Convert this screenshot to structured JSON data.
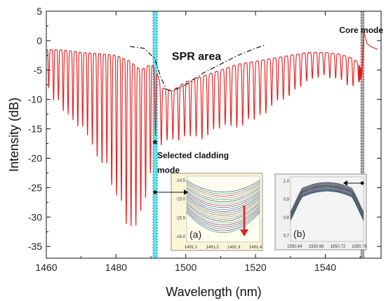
{
  "chart_data": {
    "type": "line",
    "title": "",
    "xlabel": "Wavelength (nm)",
    "ylabel": "Intensity (dB)",
    "xlim": [
      1460,
      1556
    ],
    "ylim": [
      -37,
      5
    ],
    "x_ticks": [
      1460,
      1480,
      1500,
      1520,
      1540
    ],
    "y_ticks": [
      5,
      0,
      -5,
      -10,
      -15,
      -20,
      -25,
      -30,
      -35
    ],
    "grid": false,
    "series": [
      {
        "name": "",
        "color": "#e8191a",
        "x": [
          1460,
          1465,
          1470,
          1475,
          1480,
          1484,
          1487,
          1490,
          1491.5,
          1493,
          1496,
          1500,
          1505,
          1510,
          1515,
          1520,
          1525,
          1530,
          1535,
          1540,
          1544,
          1547,
          1549,
          1550.5,
          1551,
          1552,
          1553,
          1555
        ],
        "upper_envelope": [
          -1.5,
          -1.6,
          -2.0,
          -2.2,
          -2.5,
          -3.5,
          -5,
          -4,
          -5,
          -8,
          -8.5,
          -7,
          -6,
          -5,
          -4,
          -3.5,
          -3,
          -2.5,
          -2,
          -2,
          -2.3,
          -2.8,
          -3.5,
          -5,
          1.5,
          -0.5,
          -1,
          -1.5
        ],
        "lower_envelope": [
          -8,
          -12,
          -15,
          -19,
          -25,
          -32,
          -30,
          -22,
          -15,
          -18,
          -17,
          -17,
          -16,
          -15,
          -14,
          -13,
          -11,
          -9,
          -7,
          -6,
          -6.5,
          -7.5,
          -8,
          -6,
          -0.5,
          -0.8,
          -1.2,
          -1.6
        ]
      }
    ],
    "spr_envelope": {
      "name": "",
      "color": "#111111",
      "x": [
        1484,
        1488,
        1491,
        1493,
        1494.5,
        1496,
        1500,
        1505,
        1510,
        1515,
        1520,
        1523
      ],
      "y": [
        -1,
        -1.3,
        -3,
        -6.5,
        -8.3,
        -8.6,
        -7.5,
        -5.5,
        -4,
        -2.5,
        -1.3,
        -0.7
      ]
    },
    "highlight_bands": [
      {
        "name": "selected-cladding-band",
        "x": [
          1490.6,
          1491.8
        ],
        "color": "#3ee0f0"
      },
      {
        "name": "core-mode-band",
        "x": [
          1550.2,
          1551.1
        ],
        "color": "#9a9a9a"
      }
    ],
    "annotations": [
      {
        "id": "spr",
        "text": "SPR area",
        "x": 1496,
        "y": -3.3
      },
      {
        "id": "core",
        "text": "Core mode",
        "x": 1544,
        "y": 1.3
      },
      {
        "id": "cladding_line1",
        "text": "Selected cladding",
        "x": 1491.8,
        "y": -20
      },
      {
        "id": "cladding_line2",
        "text": "mode",
        "x": 1491.8,
        "y": -22.5
      },
      {
        "id": "star",
        "text": "*",
        "x": 1491.2,
        "y": -17.7
      }
    ],
    "insets": [
      {
        "id": "a",
        "label": "(a)",
        "x_ticks": [
          "1491.1",
          "1491.2",
          "1491.3",
          "1491.4"
        ],
        "y_ticks": [
          "-14.5",
          "-15.0",
          "-15.5",
          "-16.0"
        ]
      },
      {
        "id": "b",
        "label": "(b)",
        "x_ticks": [
          "1550.64",
          "1550.68",
          "1550.72",
          "1550.76"
        ],
        "y_ticks": [
          "1.0",
          "0.9",
          "0.8",
          "0.7"
        ]
      }
    ]
  }
}
